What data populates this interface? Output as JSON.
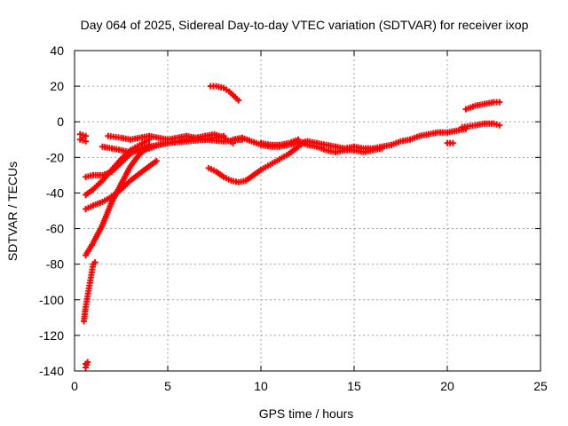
{
  "chart_data": {
    "type": "scatter",
    "title": "Day 064 of 2025, Sidereal Day-to-day VTEC variation (SDTVAR) for receiver ixop",
    "xlabel": "GPS time / hours",
    "ylabel": "SDTVAR / TECUs",
    "xlim": [
      0,
      25
    ],
    "ylim": [
      -140,
      40
    ],
    "xticks": [
      0,
      5,
      10,
      15,
      20,
      25
    ],
    "xtick_labels": [
      "0",
      "5",
      "10",
      "15",
      "20",
      "25"
    ],
    "yticks": [
      -140,
      -120,
      -100,
      -80,
      -60,
      -40,
      -20,
      0,
      20,
      40
    ],
    "ytick_labels": [
      "-140",
      "-120",
      "-100",
      "-80",
      "-60",
      "-40",
      "-20",
      "0",
      "20",
      "40"
    ],
    "grid": true,
    "marker": "plus",
    "color": "#ff0000",
    "series": [
      {
        "name": "s1",
        "points": [
          [
            0.3,
            -7
          ],
          [
            0.6,
            -8
          ],
          [
            0.3,
            -10
          ],
          [
            0.6,
            -11
          ]
        ]
      },
      {
        "name": "s2",
        "points": [
          [
            0.5,
            -112
          ],
          [
            0.6,
            -104
          ],
          [
            0.7,
            -98
          ],
          [
            0.8,
            -92
          ],
          [
            0.9,
            -86
          ],
          [
            1.0,
            -80
          ],
          [
            1.1,
            -79
          ]
        ]
      },
      {
        "name": "s3",
        "points": [
          [
            0.6,
            -136
          ],
          [
            0.6,
            -138
          ],
          [
            0.7,
            -135
          ]
        ]
      },
      {
        "name": "s4",
        "points": [
          [
            0.6,
            -75
          ],
          [
            1.0,
            -68
          ],
          [
            1.5,
            -58
          ],
          [
            2.0,
            -45
          ],
          [
            2.5,
            -35
          ],
          [
            3.0,
            -25
          ],
          [
            3.5,
            -18
          ],
          [
            4.0,
            -14
          ],
          [
            5.0,
            -12
          ],
          [
            6.0,
            -11
          ],
          [
            7.0,
            -10
          ],
          [
            8.0,
            -11
          ],
          [
            9.0,
            -10
          ]
        ]
      },
      {
        "name": "s5",
        "points": [
          [
            0.6,
            -31
          ],
          [
            1.0,
            -30
          ],
          [
            1.5,
            -30
          ],
          [
            2.0,
            -28
          ],
          [
            2.5,
            -23
          ],
          [
            3.0,
            -18
          ],
          [
            3.5,
            -15
          ],
          [
            4.0,
            -13
          ]
        ]
      },
      {
        "name": "s6",
        "points": [
          [
            0.6,
            -41
          ],
          [
            1.0,
            -38
          ],
          [
            1.5,
            -33
          ],
          [
            2.0,
            -27
          ],
          [
            2.5,
            -21
          ],
          [
            3.0,
            -16
          ],
          [
            3.5,
            -13
          ],
          [
            4.0,
            -10
          ]
        ]
      },
      {
        "name": "s7",
        "points": [
          [
            0.6,
            -49
          ],
          [
            1.0,
            -47
          ],
          [
            1.5,
            -45
          ],
          [
            2.0,
            -42
          ],
          [
            2.5,
            -38
          ],
          [
            3.0,
            -33
          ],
          [
            3.5,
            -29
          ],
          [
            4.0,
            -25
          ],
          [
            4.4,
            -22
          ]
        ]
      },
      {
        "name": "s8",
        "points": [
          [
            1.8,
            -8
          ],
          [
            2.5,
            -9
          ],
          [
            3.0,
            -10
          ],
          [
            3.5,
            -9
          ],
          [
            4.0,
            -8
          ],
          [
            4.5,
            -9
          ],
          [
            5.0,
            -10
          ],
          [
            5.5,
            -9
          ],
          [
            6.0,
            -8
          ],
          [
            6.5,
            -9
          ],
          [
            7.0,
            -10
          ],
          [
            7.5,
            -9
          ],
          [
            8.0,
            -8
          ]
        ]
      },
      {
        "name": "s9",
        "points": [
          [
            1.5,
            -14
          ],
          [
            2.0,
            -15
          ],
          [
            2.5,
            -16
          ],
          [
            3.0,
            -17
          ],
          [
            3.5,
            -16
          ],
          [
            4.0,
            -15
          ],
          [
            4.5,
            -13
          ],
          [
            5.0,
            -12
          ],
          [
            5.5,
            -11
          ],
          [
            6.0,
            -10
          ],
          [
            6.5,
            -9
          ],
          [
            7.0,
            -8
          ],
          [
            7.5,
            -7
          ],
          [
            8.0,
            -9
          ],
          [
            8.5,
            -12
          ]
        ]
      },
      {
        "name": "s10",
        "points": [
          [
            7.3,
            20
          ],
          [
            7.6,
            20
          ],
          [
            8.0,
            19
          ],
          [
            8.3,
            17
          ],
          [
            8.6,
            14
          ],
          [
            8.8,
            12
          ]
        ]
      },
      {
        "name": "s11",
        "points": [
          [
            7.2,
            -26
          ],
          [
            7.6,
            -28
          ],
          [
            8.0,
            -31
          ],
          [
            8.4,
            -33
          ],
          [
            8.8,
            -34
          ],
          [
            9.2,
            -33
          ],
          [
            9.6,
            -30
          ],
          [
            10.0,
            -27
          ],
          [
            10.5,
            -24
          ],
          [
            11.0,
            -21
          ],
          [
            11.5,
            -18
          ],
          [
            12.0,
            -14
          ],
          [
            12.3,
            -12
          ]
        ]
      },
      {
        "name": "s12",
        "points": [
          [
            8.5,
            -10
          ],
          [
            9.0,
            -9
          ],
          [
            9.5,
            -11
          ],
          [
            10.0,
            -13
          ],
          [
            10.5,
            -14
          ],
          [
            11.0,
            -14
          ],
          [
            11.5,
            -13
          ],
          [
            12.0,
            -12
          ],
          [
            12.5,
            -11
          ],
          [
            13.0,
            -12
          ],
          [
            13.5,
            -13
          ],
          [
            14.0,
            -14
          ],
          [
            14.5,
            -15
          ],
          [
            15.0,
            -14
          ],
          [
            15.5,
            -15
          ],
          [
            16.0,
            -15
          ],
          [
            16.5,
            -14
          ],
          [
            17.0,
            -13
          ],
          [
            17.5,
            -11
          ],
          [
            18.0,
            -10
          ],
          [
            18.5,
            -8
          ],
          [
            19.0,
            -7
          ],
          [
            19.5,
            -6
          ],
          [
            20.0,
            -6
          ],
          [
            20.5,
            -5
          ],
          [
            21.0,
            -4
          ]
        ]
      },
      {
        "name": "s13",
        "points": [
          [
            12.0,
            -11
          ],
          [
            12.5,
            -13
          ],
          [
            13.0,
            -14
          ],
          [
            13.5,
            -16
          ],
          [
            14.0,
            -17
          ],
          [
            14.5,
            -16
          ],
          [
            15.0,
            -16
          ],
          [
            15.5,
            -17
          ],
          [
            16.0,
            -16
          ],
          [
            16.5,
            -15
          ]
        ]
      },
      {
        "name": "s14",
        "points": [
          [
            10.0,
            -12
          ],
          [
            10.5,
            -13
          ],
          [
            11.0,
            -13
          ],
          [
            11.5,
            -12
          ],
          [
            12.0,
            -10
          ]
        ]
      },
      {
        "name": "s15",
        "points": [
          [
            20.0,
            -12
          ],
          [
            20.3,
            -12
          ]
        ]
      },
      {
        "name": "s16",
        "points": [
          [
            20.8,
            -3
          ],
          [
            21.5,
            -2
          ],
          [
            22.0,
            -1
          ],
          [
            22.5,
            -1
          ],
          [
            22.8,
            -2
          ]
        ]
      },
      {
        "name": "s17",
        "points": [
          [
            21.0,
            7
          ],
          [
            21.5,
            9
          ],
          [
            22.0,
            10
          ],
          [
            22.5,
            11
          ],
          [
            22.8,
            11
          ]
        ]
      }
    ]
  }
}
